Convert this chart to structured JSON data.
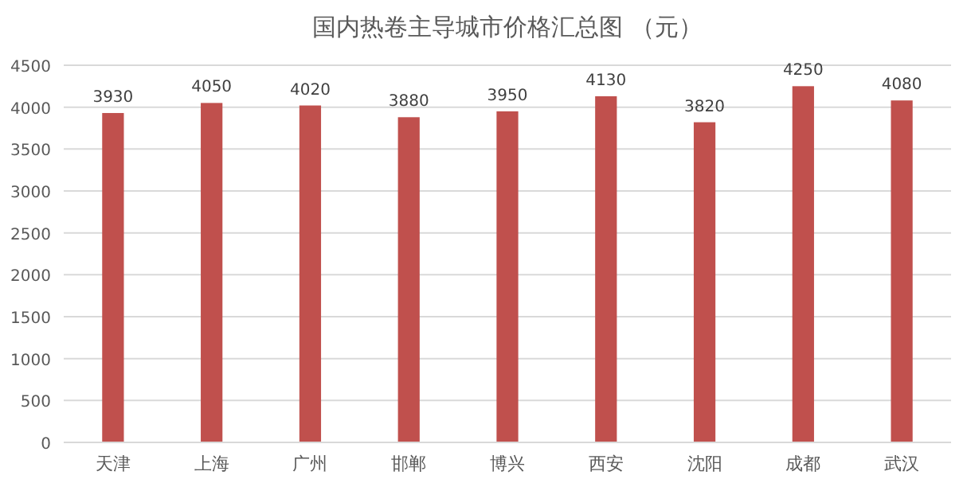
{
  "chart_data": {
    "type": "bar",
    "title": "国内热卷主导城市价格汇总图 （元）",
    "categories": [
      "天津",
      "上海",
      "广州",
      "邯郸",
      "博兴",
      "西安",
      "沈阳",
      "成都",
      "武汉"
    ],
    "values": [
      3930,
      4050,
      4020,
      3880,
      3950,
      4130,
      3820,
      4250,
      4080
    ],
    "color": "#c0504d",
    "ylim": [
      0,
      4500
    ],
    "yticks": [
      0,
      500,
      1000,
      1500,
      2000,
      2500,
      3000,
      3500,
      4000,
      4500
    ],
    "grid": "y",
    "data_labels": true
  }
}
